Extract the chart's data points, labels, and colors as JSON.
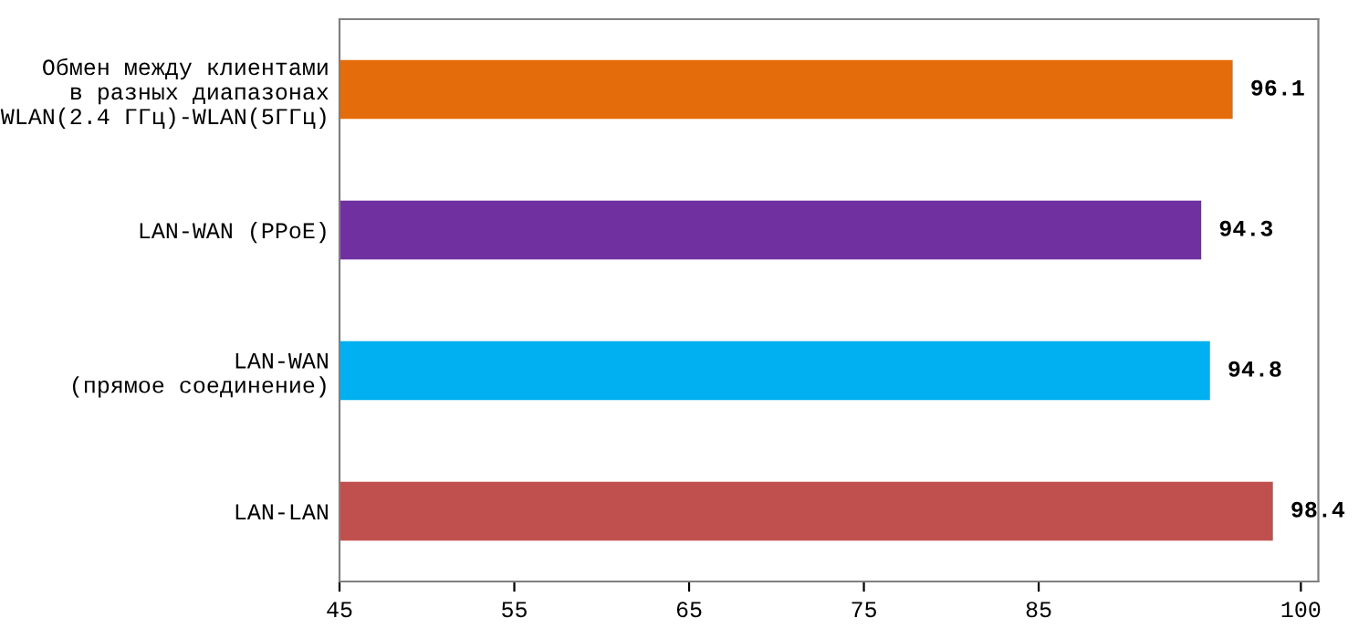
{
  "chart_data": {
    "type": "bar",
    "orientation": "horizontal",
    "categories": [
      "Обмен между клиентами\nв разных диапазонах\nWLAN(2.4 ГГц)-WLAN(5ГГц)",
      "LAN-WAN (PPoE)",
      "LAN-WAN\n(прямое соединение)",
      "LAN-LAN"
    ],
    "values": [
      96.1,
      94.3,
      94.8,
      98.4
    ],
    "colors": [
      "#e46c0a",
      "#7030a0",
      "#00b0f0",
      "#c0504d"
    ],
    "xlim": [
      45,
      101
    ],
    "xticks": [
      45,
      55,
      65,
      75,
      85,
      100
    ],
    "data_labels": true,
    "grid": false,
    "legend": false
  }
}
